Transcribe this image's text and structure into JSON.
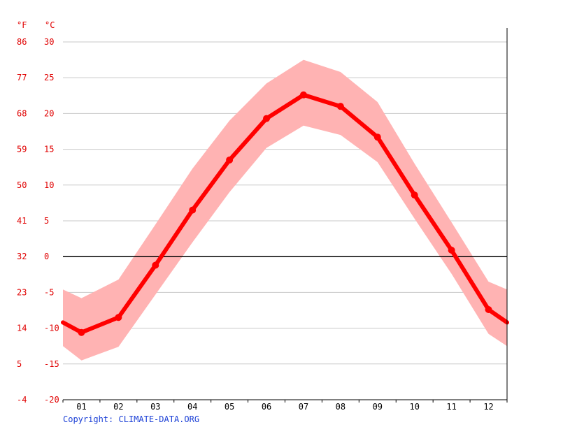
{
  "chart_data": {
    "type": "line",
    "unit_left": "°F",
    "unit_right": "°C",
    "categories": [
      "01",
      "02",
      "03",
      "04",
      "05",
      "06",
      "07",
      "08",
      "09",
      "10",
      "11",
      "12"
    ],
    "yticks_c": [
      30,
      25,
      20,
      15,
      10,
      5,
      0,
      -5,
      -10,
      -15,
      -20
    ],
    "yticks_f": [
      "86",
      "77",
      "68",
      "59",
      "50",
      "41",
      "32",
      "23",
      "14",
      "5",
      "-4"
    ],
    "ylim": [
      -20,
      30
    ],
    "grid": true,
    "series": [
      {
        "values": [
          -10.6,
          -8.5,
          -1.2,
          6.5,
          13.5,
          19.3,
          22.6,
          21.0,
          16.7,
          8.6,
          0.9,
          -7.4
        ]
      }
    ],
    "range_high": [
      -5.8,
      -3.2,
      4.5,
      12.3,
      19.0,
      24.2,
      27.5,
      25.8,
      21.6,
      13.0,
      4.8,
      -3.5
    ],
    "range_low": [
      -14.5,
      -12.6,
      -5.3,
      2.0,
      9.0,
      15.2,
      18.3,
      17.0,
      13.2,
      5.3,
      -2.4,
      -10.8
    ],
    "edge_left": {
      "value": -9.2,
      "high": -4.6,
      "low": -12.5
    },
    "edge_right": {
      "value": -9.2,
      "high": -4.6,
      "low": -12.5
    },
    "colors": {
      "line": "#ff0000",
      "band": "#ffb3b3",
      "grid": "#c8c8c8",
      "zero": "#000000"
    }
  },
  "copyright": "Copyright: CLIMATE-DATA.ORG"
}
